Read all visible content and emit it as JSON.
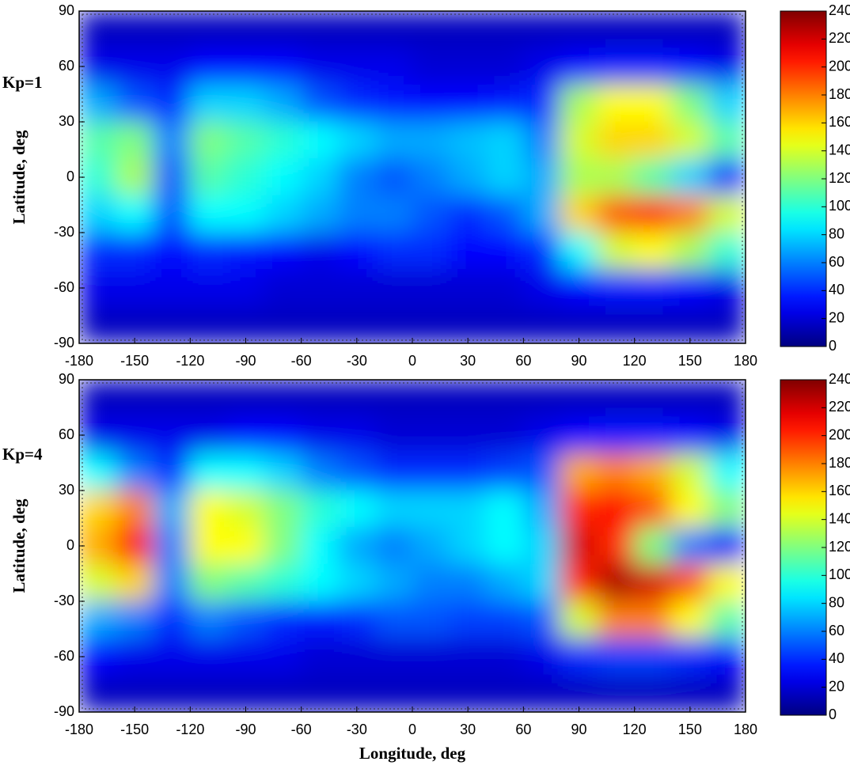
{
  "chart_data": [
    {
      "type": "heatmap",
      "annotation": "Kp=1",
      "ylabel": "Latitude, deg",
      "colormap": "jet",
      "x": [
        -170,
        -150,
        -130,
        -110,
        -90,
        -70,
        -50,
        -30,
        -10,
        10,
        30,
        50,
        70,
        90,
        110,
        130,
        150,
        170
      ],
      "y": [
        80,
        60,
        40,
        20,
        0,
        -20,
        -40,
        -60,
        -80
      ],
      "z": [
        [
          15,
          15,
          15,
          15,
          15,
          15,
          15,
          15,
          15,
          15,
          15,
          15,
          15,
          15,
          15,
          15,
          15,
          15
        ],
        [
          25,
          25,
          25,
          30,
          30,
          30,
          25,
          25,
          25,
          20,
          20,
          20,
          25,
          30,
          35,
          35,
          30,
          25
        ],
        [
          70,
          50,
          40,
          80,
          80,
          70,
          50,
          40,
          35,
          30,
          30,
          35,
          40,
          130,
          150,
          150,
          120,
          80
        ],
        [
          110,
          120,
          60,
          120,
          110,
          100,
          90,
          80,
          70,
          70,
          75,
          80,
          60,
          140,
          160,
          160,
          140,
          110
        ],
        [
          100,
          130,
          50,
          110,
          100,
          90,
          80,
          60,
          50,
          60,
          70,
          80,
          70,
          130,
          130,
          110,
          80,
          40
        ],
        [
          80,
          90,
          50,
          90,
          90,
          80,
          70,
          60,
          60,
          50,
          40,
          50,
          70,
          160,
          190,
          200,
          180,
          140
        ],
        [
          40,
          40,
          30,
          40,
          35,
          30,
          25,
          30,
          40,
          40,
          30,
          30,
          40,
          90,
          140,
          150,
          130,
          100
        ],
        [
          25,
          25,
          25,
          25,
          25,
          20,
          20,
          20,
          20,
          20,
          20,
          20,
          25,
          30,
          35,
          35,
          30,
          25
        ],
        [
          15,
          15,
          15,
          15,
          15,
          15,
          15,
          15,
          15,
          15,
          15,
          15,
          15,
          15,
          15,
          15,
          15,
          15
        ]
      ],
      "xlim": [
        -180,
        180
      ],
      "ylim": [
        -90,
        90
      ],
      "xticks": [
        -180,
        -150,
        -120,
        -90,
        -60,
        -30,
        0,
        30,
        60,
        90,
        120,
        150,
        180
      ],
      "yticks": [
        -90,
        -60,
        -30,
        0,
        30,
        60,
        90
      ],
      "zlim": [
        0,
        240
      ],
      "zticks": [
        0,
        20,
        40,
        60,
        80,
        100,
        120,
        140,
        160,
        180,
        200,
        220,
        240
      ]
    },
    {
      "type": "heatmap",
      "annotation": "Kp=4",
      "ylabel": "Latitude, deg",
      "xlabel": "Longitude, deg",
      "colormap": "jet",
      "x": [
        -170,
        -150,
        -130,
        -110,
        -90,
        -70,
        -50,
        -30,
        -10,
        10,
        30,
        50,
        70,
        90,
        110,
        130,
        150,
        170
      ],
      "y": [
        80,
        60,
        40,
        20,
        0,
        -20,
        -40,
        -60,
        -80
      ],
      "z": [
        [
          15,
          15,
          15,
          15,
          15,
          15,
          15,
          15,
          15,
          15,
          15,
          15,
          15,
          15,
          15,
          15,
          15,
          15
        ],
        [
          25,
          25,
          25,
          25,
          30,
          30,
          25,
          25,
          20,
          20,
          20,
          20,
          25,
          30,
          35,
          35,
          30,
          25
        ],
        [
          90,
          60,
          40,
          90,
          90,
          80,
          60,
          50,
          40,
          40,
          40,
          45,
          50,
          170,
          180,
          170,
          140,
          90
        ],
        [
          160,
          180,
          70,
          150,
          140,
          120,
          100,
          90,
          80,
          80,
          80,
          90,
          70,
          200,
          210,
          190,
          150,
          120
        ],
        [
          170,
          210,
          60,
          150,
          150,
          120,
          90,
          70,
          60,
          70,
          80,
          90,
          80,
          220,
          200,
          120,
          60,
          30
        ],
        [
          140,
          160,
          60,
          120,
          110,
          100,
          90,
          80,
          70,
          60,
          60,
          70,
          80,
          200,
          230,
          220,
          190,
          150
        ],
        [
          70,
          60,
          40,
          60,
          50,
          40,
          35,
          40,
          50,
          50,
          45,
          45,
          50,
          140,
          180,
          180,
          150,
          110
        ],
        [
          30,
          25,
          25,
          25,
          25,
          25,
          20,
          20,
          20,
          20,
          20,
          20,
          25,
          40,
          45,
          45,
          40,
          30
        ],
        [
          15,
          15,
          15,
          15,
          15,
          15,
          15,
          15,
          15,
          15,
          15,
          15,
          15,
          15,
          15,
          15,
          15,
          15
        ]
      ],
      "xlim": [
        -180,
        180
      ],
      "ylim": [
        -90,
        90
      ],
      "xticks": [
        -180,
        -150,
        -120,
        -90,
        -60,
        -30,
        0,
        30,
        60,
        90,
        120,
        150,
        180
      ],
      "yticks": [
        -90,
        -60,
        -30,
        0,
        30,
        60,
        90
      ],
      "zlim": [
        0,
        240
      ],
      "zticks": [
        0,
        20,
        40,
        60,
        80,
        100,
        120,
        140,
        160,
        180,
        200,
        220,
        240
      ]
    }
  ]
}
